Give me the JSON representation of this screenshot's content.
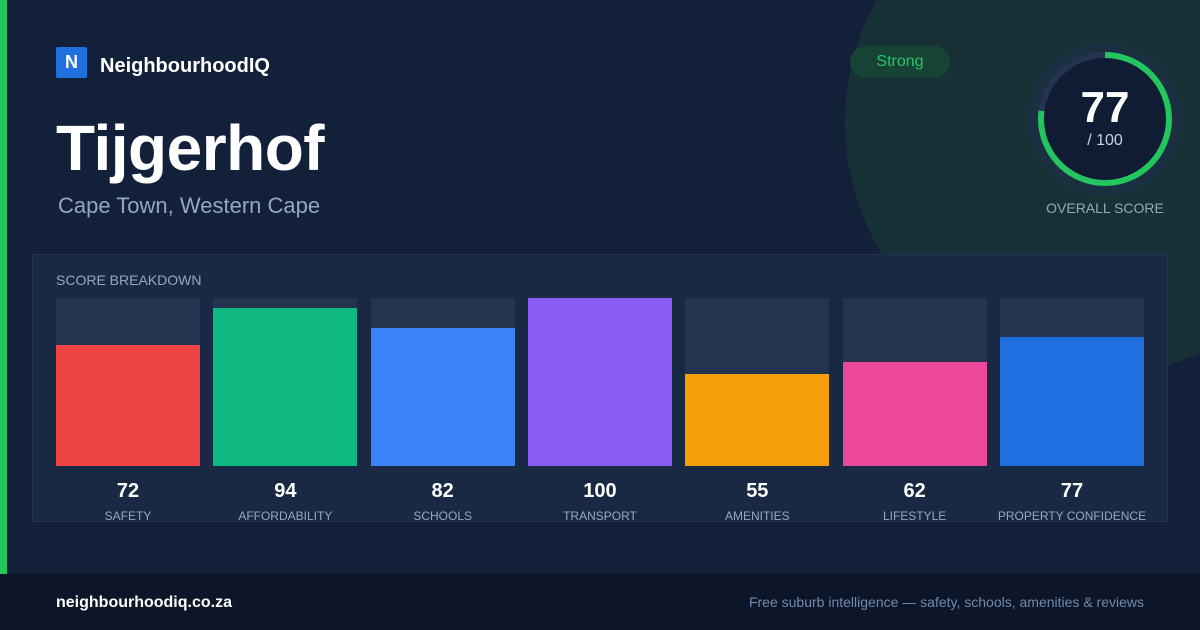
{
  "brand": {
    "logo_letter": "N",
    "name": "NeighbourhoodIQ"
  },
  "suburb": {
    "name": "Tijgerhof",
    "location": "Cape Town, Western Cape"
  },
  "rating_badge": "Strong",
  "overall": {
    "score": "77",
    "max": "/ 100",
    "fraction": 0.77,
    "label": "OVERALL SCORE"
  },
  "breakdown": {
    "title": "SCORE BREAKDOWN",
    "max_value": 100,
    "items": [
      {
        "label": "SAFETY",
        "value": 72,
        "color": "#ef4444"
      },
      {
        "label": "AFFORDABILITY",
        "value": 94,
        "color": "#10b981"
      },
      {
        "label": "SCHOOLS",
        "value": 82,
        "color": "#3b82f6"
      },
      {
        "label": "TRANSPORT",
        "value": 100,
        "color": "#8b5cf6"
      },
      {
        "label": "AMENITIES",
        "value": 55,
        "color": "#f59e0b"
      },
      {
        "label": "LIFESTYLE",
        "value": 62,
        "color": "#ec4899"
      },
      {
        "label": "PROPERTY CONFIDENCE",
        "value": 77,
        "color": "#1f6fe0"
      }
    ]
  },
  "footer": {
    "url": "neighbourhoodiq.co.za",
    "tagline": "Free suburb intelligence — safety, schools, amenities & reviews"
  },
  "colors": {
    "accent_green": "#22c55e",
    "background": "#132039",
    "brand_blue": "#1f6fe0"
  }
}
